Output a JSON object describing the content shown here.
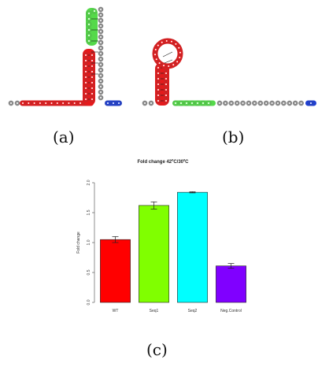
{
  "figure": {
    "captions": {
      "a": "(a)",
      "b": "(b)",
      "c": "(c)"
    }
  },
  "structure_colors": {
    "red": "#e41a1c",
    "green": "#55d94a",
    "blue": "#1f3fd1",
    "grey": "#8c8c8c"
  },
  "chart_data": {
    "type": "bar",
    "title": "Fold change 42ºC/30ºC",
    "xlabel": "",
    "ylabel": "Fold change",
    "categories": [
      "WT",
      "Seq1",
      "Seq2",
      "Neg.Control"
    ],
    "values": [
      1.05,
      1.62,
      1.84,
      0.61
    ],
    "errors": [
      0.05,
      0.06,
      0.01,
      0.04
    ],
    "colors": [
      "#ff0000",
      "#80ff00",
      "#00ffff",
      "#8000ff"
    ],
    "ylim": [
      0,
      2.0
    ],
    "yticks": [
      "0.0",
      "0.5",
      "1.0",
      "1.5",
      "2.0"
    ],
    "grid": false
  }
}
